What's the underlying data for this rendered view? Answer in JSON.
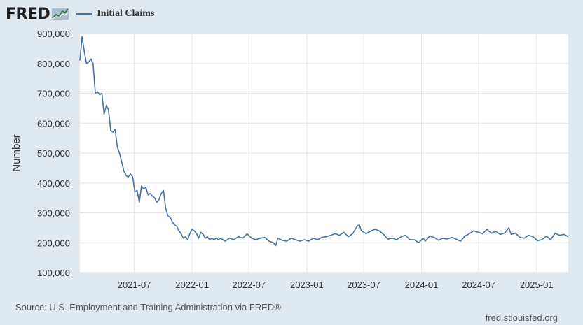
{
  "header": {
    "logo_text": "FRED",
    "logo_icon": "fred-chart-logo-icon",
    "legend_label": "Initial Claims"
  },
  "footer": {
    "source": "Source: U.S. Employment and Training Administration via FRED®",
    "site": "fred.stlouisfed.org"
  },
  "colors": {
    "background": "#e1e9f0",
    "plot_bg": "#ffffff",
    "line": "#4572a7",
    "grid": "#e6e6e6"
  },
  "chart_data": {
    "type": "line",
    "title": "",
    "ylabel": "Number",
    "xlabel": "",
    "ylim": [
      100000,
      900000
    ],
    "yticks": [
      100000,
      200000,
      300000,
      400000,
      500000,
      600000,
      700000,
      800000,
      900000
    ],
    "ytick_labels": [
      "100,000",
      "200,000",
      "300,000",
      "400,000",
      "500,000",
      "600,000",
      "700,000",
      "800,000",
      "900,000"
    ],
    "xlim": [
      "2021-01-09",
      "2025-04-12"
    ],
    "xticks": [
      "2021-07-01",
      "2022-01-01",
      "2022-07-01",
      "2023-01-01",
      "2023-07-01",
      "2024-01-01",
      "2024-07-01",
      "2025-01-01"
    ],
    "xtick_labels": [
      "2021-07",
      "2022-01",
      "2022-07",
      "2023-01",
      "2023-07",
      "2024-01",
      "2024-07",
      "2025-01"
    ],
    "grid": true,
    "legend_position": "top-left",
    "series": [
      {
        "name": "Initial Claims",
        "x": [
          "2021-01-09",
          "2021-01-16",
          "2021-01-23",
          "2021-01-30",
          "2021-02-06",
          "2021-02-13",
          "2021-02-20",
          "2021-02-27",
          "2021-03-06",
          "2021-03-13",
          "2021-03-20",
          "2021-03-27",
          "2021-04-03",
          "2021-04-10",
          "2021-04-17",
          "2021-04-24",
          "2021-05-01",
          "2021-05-08",
          "2021-05-15",
          "2021-05-22",
          "2021-05-29",
          "2021-06-05",
          "2021-06-12",
          "2021-06-19",
          "2021-06-26",
          "2021-07-03",
          "2021-07-10",
          "2021-07-17",
          "2021-07-24",
          "2021-07-31",
          "2021-08-07",
          "2021-08-14",
          "2021-08-21",
          "2021-08-28",
          "2021-09-04",
          "2021-09-11",
          "2021-09-18",
          "2021-09-25",
          "2021-10-02",
          "2021-10-09",
          "2021-10-16",
          "2021-10-23",
          "2021-10-30",
          "2021-11-06",
          "2021-11-13",
          "2021-11-20",
          "2021-11-27",
          "2021-12-04",
          "2021-12-11",
          "2021-12-18",
          "2021-12-25",
          "2022-01-01",
          "2022-01-08",
          "2022-01-15",
          "2022-01-22",
          "2022-01-29",
          "2022-02-05",
          "2022-02-12",
          "2022-02-19",
          "2022-02-26",
          "2022-03-05",
          "2022-03-12",
          "2022-03-19",
          "2022-03-26",
          "2022-04-02",
          "2022-04-16",
          "2022-04-30",
          "2022-05-14",
          "2022-05-28",
          "2022-06-11",
          "2022-06-25",
          "2022-07-09",
          "2022-07-23",
          "2022-08-06",
          "2022-08-20",
          "2022-09-03",
          "2022-09-17",
          "2022-09-24",
          "2022-10-01",
          "2022-10-15",
          "2022-10-29",
          "2022-11-12",
          "2022-11-26",
          "2022-12-10",
          "2022-12-24",
          "2023-01-07",
          "2023-01-21",
          "2023-02-04",
          "2023-02-18",
          "2023-03-04",
          "2023-03-18",
          "2023-04-01",
          "2023-04-15",
          "2023-04-29",
          "2023-05-13",
          "2023-05-27",
          "2023-06-10",
          "2023-06-17",
          "2023-06-24",
          "2023-07-08",
          "2023-07-22",
          "2023-08-05",
          "2023-08-19",
          "2023-09-02",
          "2023-09-16",
          "2023-09-30",
          "2023-10-14",
          "2023-10-28",
          "2023-11-11",
          "2023-11-25",
          "2023-12-09",
          "2023-12-23",
          "2024-01-06",
          "2024-01-13",
          "2024-01-27",
          "2024-02-10",
          "2024-02-24",
          "2024-03-09",
          "2024-03-23",
          "2024-04-06",
          "2024-04-20",
          "2024-05-04",
          "2024-05-18",
          "2024-06-01",
          "2024-06-15",
          "2024-06-29",
          "2024-07-13",
          "2024-07-27",
          "2024-08-10",
          "2024-08-24",
          "2024-09-07",
          "2024-09-21",
          "2024-10-05",
          "2024-10-12",
          "2024-10-26",
          "2024-11-09",
          "2024-11-23",
          "2024-12-07",
          "2024-12-21",
          "2025-01-04",
          "2025-01-18",
          "2025-02-01",
          "2025-02-15",
          "2025-03-01",
          "2025-03-15",
          "2025-03-29",
          "2025-04-12"
        ],
        "values": [
          810000,
          890000,
          840000,
          800000,
          805000,
          815000,
          800000,
          700000,
          705000,
          695000,
          700000,
          630000,
          660000,
          645000,
          575000,
          570000,
          580000,
          520000,
          500000,
          470000,
          440000,
          425000,
          420000,
          430000,
          420000,
          370000,
          375000,
          335000,
          390000,
          380000,
          385000,
          360000,
          365000,
          355000,
          350000,
          335000,
          345000,
          365000,
          375000,
          315000,
          290000,
          285000,
          270000,
          260000,
          255000,
          240000,
          230000,
          215000,
          220000,
          210000,
          230000,
          245000,
          240000,
          230000,
          215000,
          235000,
          228000,
          215000,
          220000,
          210000,
          215000,
          210000,
          215000,
          210000,
          215000,
          205000,
          215000,
          210000,
          220000,
          215000,
          230000,
          215000,
          210000,
          215000,
          218000,
          205000,
          200000,
          190000,
          215000,
          208000,
          205000,
          215000,
          210000,
          205000,
          210000,
          205000,
          215000,
          210000,
          218000,
          220000,
          225000,
          230000,
          225000,
          235000,
          220000,
          230000,
          255000,
          260000,
          240000,
          230000,
          238000,
          245000,
          240000,
          228000,
          212000,
          215000,
          210000,
          220000,
          225000,
          210000,
          210000,
          200000,
          215000,
          205000,
          222000,
          218000,
          208000,
          215000,
          212000,
          218000,
          212000,
          205000,
          222000,
          230000,
          240000,
          235000,
          230000,
          245000,
          232000,
          238000,
          228000,
          232000,
          250000,
          228000,
          232000,
          218000,
          215000,
          225000,
          220000,
          207000,
          210000,
          222000,
          210000,
          232000,
          225000,
          228000,
          220000
        ]
      }
    ]
  }
}
